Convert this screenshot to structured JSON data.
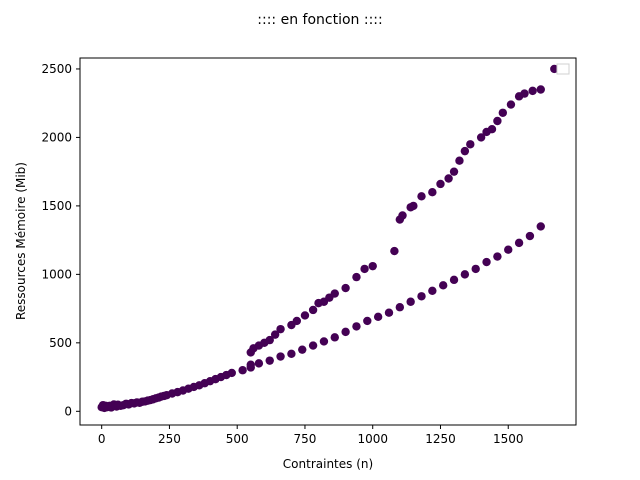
{
  "chart_data": {
    "type": "scatter",
    "title": ":::: en fonction ::::",
    "xlabel": "Contraintes (n)",
    "ylabel": "Ressources Mémoire (Mib)",
    "xlim": [
      -80,
      1750
    ],
    "ylim": [
      -100,
      2580
    ],
    "xticks": [
      0,
      250,
      500,
      750,
      1000,
      1250,
      1500
    ],
    "yticks": [
      0,
      500,
      1000,
      1500,
      2000,
      2500
    ],
    "legend": "top-right",
    "grid": false,
    "marker_color": "#440154",
    "series": [
      {
        "values_x": [
          0,
          5,
          10,
          15,
          20,
          25,
          30,
          35,
          40,
          45,
          50,
          55,
          60,
          70,
          80,
          90,
          100,
          110,
          120,
          130,
          140,
          150,
          160,
          170,
          180,
          190,
          200,
          210,
          220,
          230,
          240,
          260,
          280,
          300,
          320,
          340,
          360,
          380,
          400,
          420,
          440,
          460,
          480,
          520,
          550
        ],
        "values_y": [
          30,
          45,
          25,
          40,
          30,
          35,
          40,
          28,
          38,
          50,
          42,
          35,
          48,
          40,
          45,
          55,
          50,
          60,
          58,
          65,
          62,
          70,
          72,
          78,
          82,
          88,
          95,
          100,
          108,
          112,
          118,
          130,
          140,
          152,
          165,
          178,
          190,
          205,
          220,
          235,
          250,
          265,
          280,
          300,
          320
        ]
      },
      {
        "values_x": [
          550,
          560,
          580,
          600,
          620,
          640,
          660,
          700,
          720,
          750,
          780,
          800,
          820,
          840,
          860,
          900,
          940,
          970,
          1000,
          1080,
          1100,
          1110,
          1140,
          1150,
          1180,
          1220,
          1250,
          1280,
          1300,
          1320,
          1340,
          1360,
          1400,
          1420,
          1440,
          1460,
          1480,
          1510,
          1540,
          1560,
          1590,
          1620,
          1670
        ],
        "values_y": [
          430,
          460,
          480,
          500,
          520,
          560,
          600,
          630,
          660,
          700,
          740,
          790,
          800,
          830,
          860,
          900,
          980,
          1040,
          1060,
          1170,
          1400,
          1430,
          1490,
          1500,
          1570,
          1600,
          1660,
          1700,
          1750,
          1830,
          1900,
          1950,
          2000,
          2040,
          2060,
          2120,
          2180,
          2240,
          2300,
          2320,
          2340,
          2350,
          2500
        ]
      },
      {
        "values_x": [
          550,
          580,
          620,
          660,
          700,
          740,
          780,
          820,
          860,
          900,
          940,
          980,
          1020,
          1060,
          1100,
          1140,
          1180,
          1220,
          1260,
          1300,
          1340,
          1380,
          1420,
          1460,
          1500,
          1540,
          1580,
          1620
        ],
        "values_y": [
          340,
          350,
          370,
          400,
          420,
          450,
          480,
          510,
          540,
          580,
          620,
          660,
          690,
          720,
          760,
          800,
          840,
          880,
          920,
          960,
          1000,
          1040,
          1090,
          1130,
          1180,
          1230,
          1280,
          1350
        ]
      }
    ]
  }
}
